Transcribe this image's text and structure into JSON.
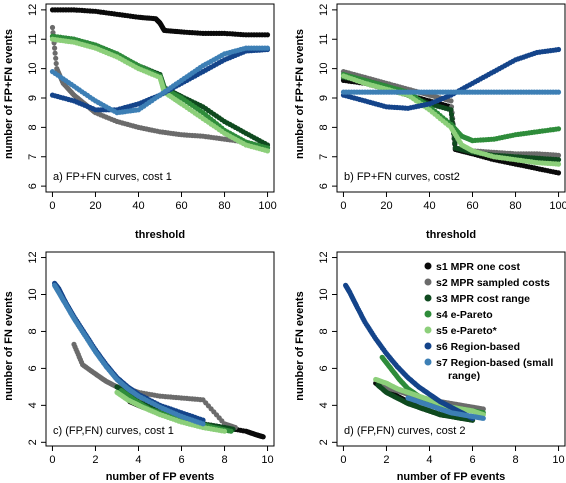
{
  "colors": {
    "s1": "#0a0a0a",
    "s2": "#6b6b6b",
    "s3": "#0f4a1f",
    "s4": "#2e8c3a",
    "s5": "#8ccf7a",
    "s6": "#14448a",
    "s7": "#3d7fb5"
  },
  "legend": [
    {
      "key": "s1",
      "label": "s1 MPR one cost"
    },
    {
      "key": "s2",
      "label": "s2 MPR sampled costs"
    },
    {
      "key": "s3",
      "label": "s3 MPR cost range"
    },
    {
      "key": "s4",
      "label": "s4 e-Pareto"
    },
    {
      "key": "s5",
      "label": "s5 e-Pareto*"
    },
    {
      "key": "s6",
      "label": "s6 Region-based"
    },
    {
      "key": "s7",
      "label": "s7 Region-based (small",
      "label2": "range)"
    }
  ],
  "chart_data": [
    {
      "type": "scatter",
      "panel": "a",
      "note": "a) FP+FN curves, cost 1",
      "xlabel": "threshold",
      "ylabel": "number of FP+FN events",
      "xlim": [
        -3,
        103
      ],
      "ylim": [
        5.8,
        12.2
      ],
      "xticks": [
        "0",
        "20",
        "40",
        "60",
        "80",
        "100"
      ],
      "yticks": [
        "6",
        "7",
        "8",
        "9",
        "10",
        "11",
        "12"
      ],
      "series": [
        {
          "key": "s1",
          "x": [
            0,
            10,
            20,
            30,
            40,
            48,
            50,
            52,
            60,
            70,
            80,
            90,
            100
          ],
          "y": [
            12.0,
            12.0,
            11.95,
            11.85,
            11.75,
            11.7,
            11.55,
            11.3,
            11.25,
            11.2,
            11.2,
            11.15,
            11.15
          ]
        },
        {
          "key": "s2",
          "x": [
            0,
            2,
            5,
            10,
            15,
            20,
            30,
            40,
            50,
            60,
            70,
            80,
            90,
            100
          ],
          "y": [
            11.4,
            10.0,
            9.5,
            9.1,
            8.8,
            8.5,
            8.2,
            8.0,
            7.85,
            7.75,
            7.7,
            7.6,
            7.5,
            7.3
          ]
        },
        {
          "key": "s3",
          "x": [
            0,
            10,
            20,
            30,
            40,
            50,
            52,
            60,
            70,
            80,
            90,
            100
          ],
          "y": [
            11.1,
            11.0,
            10.8,
            10.5,
            10.1,
            9.8,
            9.35,
            9.05,
            8.7,
            8.2,
            7.8,
            7.4
          ]
        },
        {
          "key": "s4",
          "x": [
            0,
            10,
            20,
            30,
            40,
            50,
            52,
            60,
            70,
            80,
            90,
            100
          ],
          "y": [
            11.1,
            11.0,
            10.8,
            10.5,
            10.1,
            9.75,
            9.3,
            9.0,
            8.5,
            7.9,
            7.5,
            7.3
          ]
        },
        {
          "key": "s5",
          "x": [
            0,
            10,
            20,
            30,
            40,
            50,
            52,
            60,
            70,
            80,
            90,
            100
          ],
          "y": [
            11.0,
            10.9,
            10.7,
            10.4,
            10.0,
            9.7,
            9.2,
            8.8,
            8.3,
            7.8,
            7.4,
            7.2
          ]
        },
        {
          "key": "s6",
          "x": [
            0,
            10,
            20,
            30,
            40,
            50,
            60,
            70,
            80,
            90,
            100
          ],
          "y": [
            9.1,
            8.9,
            8.6,
            8.6,
            8.8,
            9.1,
            9.5,
            9.9,
            10.3,
            10.6,
            10.65
          ]
        },
        {
          "key": "s7",
          "x": [
            0,
            10,
            20,
            30,
            40,
            50,
            60,
            70,
            80,
            90,
            100
          ],
          "y": [
            9.9,
            9.4,
            8.9,
            8.5,
            8.6,
            9.1,
            9.6,
            10.1,
            10.5,
            10.7,
            10.7
          ]
        }
      ]
    },
    {
      "type": "scatter",
      "panel": "b",
      "note": "b) FP+FN curves, cost2",
      "xlabel": "threshold",
      "ylabel": "number of FP+FN events",
      "xlim": [
        -3,
        103
      ],
      "ylim": [
        5.8,
        12.2
      ],
      "xticks": [
        "0",
        "20",
        "40",
        "60",
        "80",
        "100"
      ],
      "yticks": [
        "6",
        "7",
        "8",
        "9",
        "10",
        "11",
        "12"
      ],
      "series": [
        {
          "key": "s1",
          "x": [
            0,
            10,
            20,
            30,
            40,
            50,
            52,
            60,
            70,
            80,
            90,
            100
          ],
          "y": [
            9.6,
            9.5,
            9.3,
            9.1,
            8.9,
            8.7,
            7.25,
            7.1,
            6.9,
            6.75,
            6.6,
            6.45
          ]
        },
        {
          "key": "s2",
          "x": [
            0,
            10,
            20,
            30,
            40,
            50,
            52,
            60,
            70,
            80,
            90,
            100
          ],
          "y": [
            9.9,
            9.7,
            9.5,
            9.3,
            9.1,
            8.9,
            7.3,
            7.2,
            7.15,
            7.1,
            7.1,
            7.05
          ]
        },
        {
          "key": "s3",
          "x": [
            0,
            10,
            20,
            30,
            40,
            50,
            52,
            60,
            70,
            80,
            90,
            100
          ],
          "y": [
            9.7,
            9.6,
            9.4,
            9.1,
            8.8,
            8.6,
            7.3,
            7.15,
            7.05,
            7.0,
            6.95,
            6.9
          ]
        },
        {
          "key": "s4",
          "x": [
            0,
            10,
            20,
            30,
            40,
            50,
            55,
            60,
            70,
            80,
            90,
            100
          ],
          "y": [
            9.8,
            9.6,
            9.4,
            9.2,
            8.7,
            8.1,
            7.7,
            7.55,
            7.6,
            7.75,
            7.85,
            7.95
          ]
        },
        {
          "key": "s5",
          "x": [
            0,
            10,
            20,
            30,
            40,
            50,
            55,
            60,
            70,
            80,
            90,
            100
          ],
          "y": [
            9.75,
            9.5,
            9.3,
            9.1,
            8.6,
            8.0,
            7.4,
            7.2,
            7.0,
            6.9,
            6.8,
            6.75
          ]
        },
        {
          "key": "s6",
          "x": [
            0,
            10,
            20,
            30,
            40,
            50,
            60,
            70,
            80,
            90,
            100
          ],
          "y": [
            9.1,
            8.9,
            8.7,
            8.65,
            8.8,
            9.1,
            9.5,
            9.9,
            10.3,
            10.55,
            10.65
          ]
        },
        {
          "key": "s7",
          "x": [
            0,
            10,
            20,
            30,
            40,
            50,
            60,
            70,
            80,
            90,
            100
          ],
          "y": [
            9.2,
            9.2,
            9.2,
            9.2,
            9.2,
            9.2,
            9.2,
            9.2,
            9.2,
            9.2,
            9.2
          ]
        }
      ]
    },
    {
      "type": "scatter",
      "panel": "c",
      "note": "c) (FP,FN) curves, cost 1",
      "xlabel": "number of FP events",
      "ylabel": "number of FN events",
      "xlim": [
        -0.3,
        10.3
      ],
      "ylim": [
        1.8,
        12.3
      ],
      "xticks": [
        "0",
        "2",
        "4",
        "6",
        "8",
        "10"
      ],
      "yticks": [
        "2",
        "4",
        "6",
        "8",
        "10",
        "12"
      ],
      "series": [
        {
          "key": "s1",
          "x": [
            3.6,
            4.2,
            5.0,
            6.0,
            7.0,
            8.0,
            9.0,
            9.5,
            9.8
          ],
          "y": [
            4.2,
            3.9,
            3.6,
            3.3,
            3.0,
            2.8,
            2.6,
            2.4,
            2.3
          ]
        },
        {
          "key": "s2",
          "x": [
            1.0,
            1.4,
            2.0,
            2.5,
            3.0,
            3.5,
            4.0,
            5.0,
            6.0,
            7.0,
            8.0,
            8.5
          ],
          "y": [
            7.3,
            6.2,
            5.7,
            5.3,
            5.0,
            4.9,
            4.7,
            4.5,
            4.4,
            4.3,
            3.0,
            2.8
          ]
        },
        {
          "key": "s3",
          "x": [
            3.0,
            3.5,
            4.0,
            5.0,
            6.0,
            7.0,
            8.0,
            8.4
          ],
          "y": [
            5.0,
            4.6,
            4.2,
            3.7,
            3.3,
            3.0,
            2.8,
            2.7
          ]
        },
        {
          "key": "s4",
          "x": [
            3.2,
            3.8,
            4.5,
            5.5,
            6.5,
            7.5,
            8.3
          ],
          "y": [
            4.8,
            4.3,
            3.8,
            3.4,
            3.1,
            2.8,
            2.6
          ]
        },
        {
          "key": "s5",
          "x": [
            3.0,
            3.5,
            4.2,
            5.0,
            6.0,
            7.0,
            8.0
          ],
          "y": [
            4.7,
            4.3,
            3.9,
            3.5,
            3.1,
            2.8,
            2.6
          ]
        },
        {
          "key": "s6",
          "x": [
            0.1,
            0.3,
            0.6,
            1.0,
            1.5,
            2.0,
            2.5,
            3.0,
            3.5,
            4.0,
            5.0,
            6.0,
            7.0
          ],
          "y": [
            10.6,
            10.3,
            9.6,
            8.8,
            7.9,
            7.0,
            6.2,
            5.5,
            5.0,
            4.6,
            4.0,
            3.6,
            3.2
          ]
        },
        {
          "key": "s7",
          "x": [
            0.1,
            0.3,
            0.6,
            1.0,
            1.5,
            2.0,
            2.5,
            3.0,
            3.5,
            4.0,
            5.0,
            6.0,
            7.0
          ],
          "y": [
            10.5,
            10.1,
            9.5,
            8.7,
            7.8,
            6.9,
            6.1,
            5.4,
            4.9,
            4.5,
            3.9,
            3.4,
            3.0
          ]
        }
      ]
    },
    {
      "type": "scatter",
      "panel": "d",
      "note": "d) (FP,FN) curves, cost 2",
      "xlabel": "number of FP events",
      "ylabel": "number of FN events",
      "xlim": [
        -0.3,
        10.3
      ],
      "ylim": [
        1.8,
        12.3
      ],
      "xticks": [
        "0",
        "2",
        "4",
        "6",
        "8",
        "10"
      ],
      "yticks": [
        "2",
        "4",
        "6",
        "8",
        "10",
        "12"
      ],
      "series": [
        {
          "key": "s1",
          "x": [
            1.5,
            2.0,
            2.5,
            3.0,
            3.5,
            4.0,
            4.5,
            5.0,
            5.5,
            6.0
          ],
          "y": [
            5.2,
            4.8,
            4.5,
            4.2,
            3.9,
            3.7,
            3.5,
            3.4,
            3.3,
            3.2
          ]
        },
        {
          "key": "s2",
          "x": [
            1.8,
            2.5,
            3.0,
            3.5,
            4.0,
            4.5,
            5.0,
            5.5,
            6.0,
            6.5
          ],
          "y": [
            5.0,
            4.8,
            4.6,
            4.4,
            4.3,
            4.2,
            4.1,
            4.0,
            3.9,
            3.8
          ]
        },
        {
          "key": "s3",
          "x": [
            1.6,
            2.0,
            2.5,
            3.0,
            3.5,
            4.0,
            4.5,
            5.0,
            5.5,
            6.0
          ],
          "y": [
            5.1,
            4.7,
            4.4,
            4.1,
            3.9,
            3.7,
            3.5,
            3.4,
            3.3,
            3.2
          ]
        },
        {
          "key": "s4",
          "x": [
            1.8,
            2.2,
            2.6,
            3.0,
            3.5,
            4.0,
            4.5,
            5.0,
            5.5,
            6.0,
            6.5
          ],
          "y": [
            6.6,
            6.0,
            5.4,
            4.9,
            4.5,
            4.2,
            4.0,
            3.9,
            3.8,
            3.7,
            3.6
          ]
        },
        {
          "key": "s5",
          "x": [
            1.5,
            2.0,
            2.5,
            3.0,
            3.5,
            4.0,
            4.5,
            5.0,
            5.5,
            6.0,
            6.5
          ],
          "y": [
            5.4,
            5.2,
            4.9,
            4.7,
            4.5,
            4.3,
            4.1,
            3.9,
            3.8,
            3.7,
            3.5
          ]
        },
        {
          "key": "s6",
          "x": [
            0.1,
            0.3,
            0.6,
            1.0,
            1.5,
            2.0,
            2.5,
            3.0,
            3.5,
            4.0,
            4.5,
            5.0,
            5.5,
            6.0
          ],
          "y": [
            10.5,
            10.1,
            9.4,
            8.5,
            7.6,
            6.8,
            6.1,
            5.5,
            5.0,
            4.6,
            4.2,
            3.9,
            3.6,
            3.3
          ]
        },
        {
          "key": "s7",
          "x": [
            3.0,
            3.5,
            4.0,
            4.5,
            5.0,
            5.5,
            6.0,
            6.5
          ],
          "y": [
            4.4,
            4.2,
            4.0,
            3.8,
            3.6,
            3.5,
            3.4,
            3.3
          ]
        }
      ]
    }
  ]
}
